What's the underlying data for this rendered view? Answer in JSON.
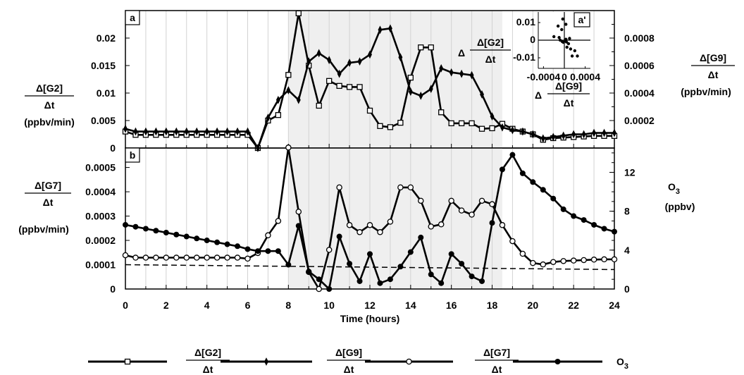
{
  "chart_data": [
    {
      "id": "a",
      "type": "line",
      "panel_label": "a",
      "x": [
        0,
        0.5,
        1,
        1.5,
        2,
        2.5,
        3,
        3.5,
        4,
        4.5,
        5,
        5.5,
        6,
        6.5,
        7,
        7.5,
        8,
        8.5,
        9,
        9.5,
        10,
        10.5,
        11,
        11.5,
        12,
        12.5,
        13,
        13.5,
        14,
        14.5,
        15,
        15.5,
        16,
        16.5,
        17,
        17.5,
        18,
        18.5,
        19,
        19.5,
        20,
        20.5,
        21,
        21.5,
        22,
        22.5,
        23,
        23.5,
        24
      ],
      "xlim": [
        0,
        24
      ],
      "xticks": [
        0,
        2,
        4,
        6,
        8,
        10,
        12,
        14,
        16,
        18,
        20,
        22,
        24
      ],
      "xlabel": "Time (hours)",
      "shaded_x": [
        8,
        18.5
      ],
      "left_axis": {
        "label": [
          "Δ[G2]",
          "Δt",
          "(ppbv/min)"
        ],
        "ylim": [
          0,
          0.025
        ],
        "ticks": [
          0,
          0.005,
          0.01,
          0.015,
          0.02
        ],
        "tick_labels": [
          "0",
          "0.005",
          "0.01",
          "0.015",
          "0.02"
        ]
      },
      "right_axis": {
        "label": [
          "Δ[G9]",
          "Δt",
          "(ppbv/min)"
        ],
        "ylim": [
          0,
          0.001
        ],
        "ticks": [
          0.0002,
          0.0004,
          0.0006,
          0.0008
        ],
        "tick_labels": [
          "0.0002",
          "0.0004",
          "0.0006",
          "0.0008"
        ]
      },
      "series": [
        {
          "name": "Δ[G2]/Δt",
          "axis": "left",
          "marker": "square",
          "values": [
            0.003,
            0.0024,
            0.0024,
            0.0024,
            0.0024,
            0.0024,
            0.0024,
            0.0024,
            0.0024,
            0.0024,
            0.0024,
            0.0024,
            0.0024,
            0.0,
            0.005,
            0.006,
            0.0133,
            0.0245,
            0.015,
            0.0077,
            0.0122,
            0.0113,
            0.0111,
            0.0111,
            0.0068,
            0.004,
            0.0038,
            0.0046,
            0.0128,
            0.0183,
            0.0183,
            0.0065,
            0.0045,
            0.0045,
            0.0045,
            0.0035,
            0.0036,
            0.0044,
            0.0035,
            0.003,
            0.0025,
            0.0015,
            0.0018,
            0.0019,
            0.002,
            0.0021,
            0.0022,
            0.0022,
            0.0022
          ]
        },
        {
          "name": "Δ[G9]/Δt",
          "axis": "right",
          "marker": "diamond",
          "values": [
            0.00014,
            0.00012,
            0.00012,
            0.00012,
            0.00012,
            0.00012,
            0.00012,
            0.00012,
            0.00012,
            0.00012,
            0.00012,
            0.00012,
            0.00012,
            0.0,
            0.00022,
            0.00035,
            0.00042,
            0.00035,
            0.00063,
            0.00069,
            0.00064,
            0.00054,
            0.00062,
            0.00063,
            0.00068,
            0.00086,
            0.00087,
            0.00066,
            0.00041,
            0.00038,
            0.00043,
            0.00058,
            0.00055,
            0.00054,
            0.00053,
            0.00039,
            0.00023,
            0.00015,
            0.00013,
            0.00012,
            0.0001,
            7e-05,
            8e-05,
            9e-05,
            0.0001,
            0.0001,
            0.00011,
            0.00011,
            0.00011
          ]
        }
      ],
      "inset": {
        "panel_label": "a'",
        "type": "scatter",
        "x_label": [
          "Δ",
          "Δ[G9]",
          "Δt"
        ],
        "y_label": [
          "Δ",
          "Δ[G2]",
          "Δt"
        ],
        "xlim": [
          -0.0005,
          0.0005
        ],
        "ylim": [
          -0.016,
          0.016
        ],
        "xticks": [
          -0.0004,
          0,
          0.0004
        ],
        "xtick_labels": [
          "-0.0004",
          "0",
          "0.0004"
        ],
        "yticks": [
          0.01,
          0,
          -0.01
        ],
        "ytick_labels": [
          "0.01",
          "0",
          "-0.01"
        ],
        "points": [
          [
            -3e-05,
            0.012
          ],
          [
            -0.00012,
            0.008
          ],
          [
            -5e-05,
            0.006
          ],
          [
            3e-05,
            0.009
          ],
          [
            -0.0002,
            0.002
          ],
          [
            -0.0001,
            0.0015
          ],
          [
            -8e-05,
            0.0
          ],
          [
            -4e-05,
            -0.0008
          ],
          [
            -2e-05,
            -0.0012
          ],
          [
            2e-05,
            -0.0005
          ],
          [
            4e-05,
            -0.001
          ],
          [
            8e-05,
            -0.002
          ],
          [
            5e-05,
            -0.004
          ],
          [
            0.00012,
            -0.005
          ],
          [
            0.0002,
            -0.006
          ],
          [
            0.00015,
            -0.009
          ],
          [
            0.00025,
            -0.009
          ],
          [
            0.0001,
            0.001
          ],
          [
            3e-05,
            0.0005
          ]
        ]
      }
    },
    {
      "id": "b",
      "type": "line",
      "panel_label": "b",
      "x": [
        0,
        0.5,
        1,
        1.5,
        2,
        2.5,
        3,
        3.5,
        4,
        4.5,
        5,
        5.5,
        6,
        6.5,
        7,
        7.5,
        8,
        8.5,
        9,
        9.5,
        10,
        10.5,
        11,
        11.5,
        12,
        12.5,
        13,
        13.5,
        14,
        14.5,
        15,
        15.5,
        16,
        16.5,
        17,
        17.5,
        18,
        18.5,
        19,
        19.5,
        20,
        20.5,
        21,
        21.5,
        22,
        22.5,
        23,
        23.5,
        24
      ],
      "xlim": [
        0,
        24
      ],
      "xticks": [
        0,
        2,
        4,
        6,
        8,
        10,
        12,
        14,
        16,
        18,
        20,
        22,
        24
      ],
      "xtick_labels": [
        "0",
        "2",
        "4",
        "6",
        "8",
        "10",
        "12",
        "14",
        "16",
        "18",
        "20",
        "22",
        "24"
      ],
      "xlabel": "Time (hours)",
      "shaded_x": [
        8,
        18.5
      ],
      "left_axis": {
        "label": [
          "Δ[G7]",
          "Δt",
          "(ppbv/min)"
        ],
        "ylim": [
          0,
          0.00058
        ],
        "ticks": [
          0,
          0.0001,
          0.0002,
          0.0003,
          0.0004,
          0.0005
        ],
        "tick_labels": [
          "0",
          "0.0001",
          "0.0002",
          "0.0003",
          "0.0004",
          "0.0005"
        ]
      },
      "right_axis": {
        "label": [
          "O",
          "3",
          "(ppbv)"
        ],
        "ylim": [
          0,
          14.5
        ],
        "ticks": [
          0,
          4,
          8,
          12
        ],
        "tick_labels": [
          "0",
          "4",
          "8",
          "12"
        ]
      },
      "dashed_line": {
        "axis": "left",
        "y": [
          0.0001,
          8e-05
        ]
      },
      "series": [
        {
          "name": "Δ[G7]/Δt",
          "axis": "left",
          "marker": "open-circle",
          "values": [
            0.000139,
            0.000129,
            0.000129,
            0.000129,
            0.000129,
            0.000129,
            0.000129,
            0.000129,
            0.000129,
            0.000129,
            0.000129,
            0.000129,
            0.000125,
            0.000148,
            0.000221,
            0.00028,
            0.000582,
            0.000318,
            7e-05,
            0.0,
            0.000161,
            0.000418,
            0.000263,
            0.000234,
            0.000263,
            0.000234,
            0.000277,
            0.000418,
            0.000418,
            0.000363,
            0.000257,
            0.000266,
            0.000363,
            0.000323,
            0.000306,
            0.000363,
            0.000349,
            0.000263,
            0.000197,
            0.000145,
            0.000107,
            0.000101,
            0.000111,
            0.000115,
            0.000117,
            0.000119,
            0.000121,
            0.000122,
            0.000122
          ]
        },
        {
          "name": "O3",
          "axis": "right",
          "marker": "filled-circle",
          "values": [
            6.6,
            6.4,
            6.2,
            6.0,
            5.8,
            5.6,
            5.4,
            5.2,
            5.0,
            4.8,
            4.6,
            4.4,
            4.1,
            3.9,
            3.9,
            3.9,
            2.5,
            6.5,
            1.8,
            1.0,
            0.0,
            5.4,
            2.6,
            0.8,
            3.6,
            0.6,
            1.0,
            2.3,
            3.8,
            5.3,
            1.5,
            0.6,
            3.6,
            2.6,
            1.3,
            0.8,
            6.8,
            12.3,
            13.8,
            11.9,
            11.0,
            10.2,
            9.3,
            8.2,
            7.5,
            7.1,
            6.6,
            6.2,
            5.9
          ]
        }
      ]
    }
  ],
  "legend": [
    {
      "marker": "square",
      "label_num": "Δ[G2]",
      "label_den": "Δt"
    },
    {
      "marker": "diamond",
      "label_num": "Δ[G9]",
      "label_den": "Δt"
    },
    {
      "marker": "open-circle",
      "label_num": "Δ[G7]",
      "label_den": "Δt"
    },
    {
      "marker": "filled-circle",
      "label_main": "O",
      "label_sub": "3"
    }
  ]
}
